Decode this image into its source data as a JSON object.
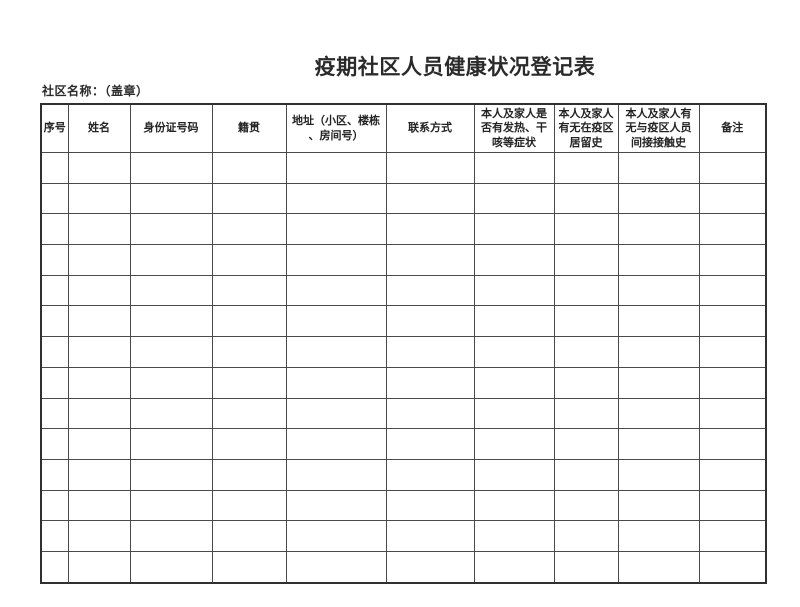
{
  "document": {
    "title": "疫期社区人员健康状况登记表",
    "community_name_label": "社区名称：（盖章）"
  },
  "table": {
    "columns": [
      {
        "id": "serial-number",
        "label": "序号"
      },
      {
        "id": "name",
        "label": "姓名"
      },
      {
        "id": "id-card-number",
        "label": "身份证号码"
      },
      {
        "id": "native-place",
        "label": "籍贯"
      },
      {
        "id": "address",
        "label": "地址（小区、楼栋\n、房间号）"
      },
      {
        "id": "contact-method",
        "label": "联系方式"
      },
      {
        "id": "fever-cough-symptoms",
        "label": "本人及家人是\n否有发热、干\n咳等症状"
      },
      {
        "id": "epidemic-area-residence-history",
        "label": "本人及家人\n有无在疫区\n居留史"
      },
      {
        "id": "indirect-contact-history",
        "label": "本人及家人有\n无与疫区人员\n间接接触史"
      },
      {
        "id": "remarks",
        "label": "备注"
      }
    ],
    "row_count": 14,
    "empty_cell_value": ""
  }
}
